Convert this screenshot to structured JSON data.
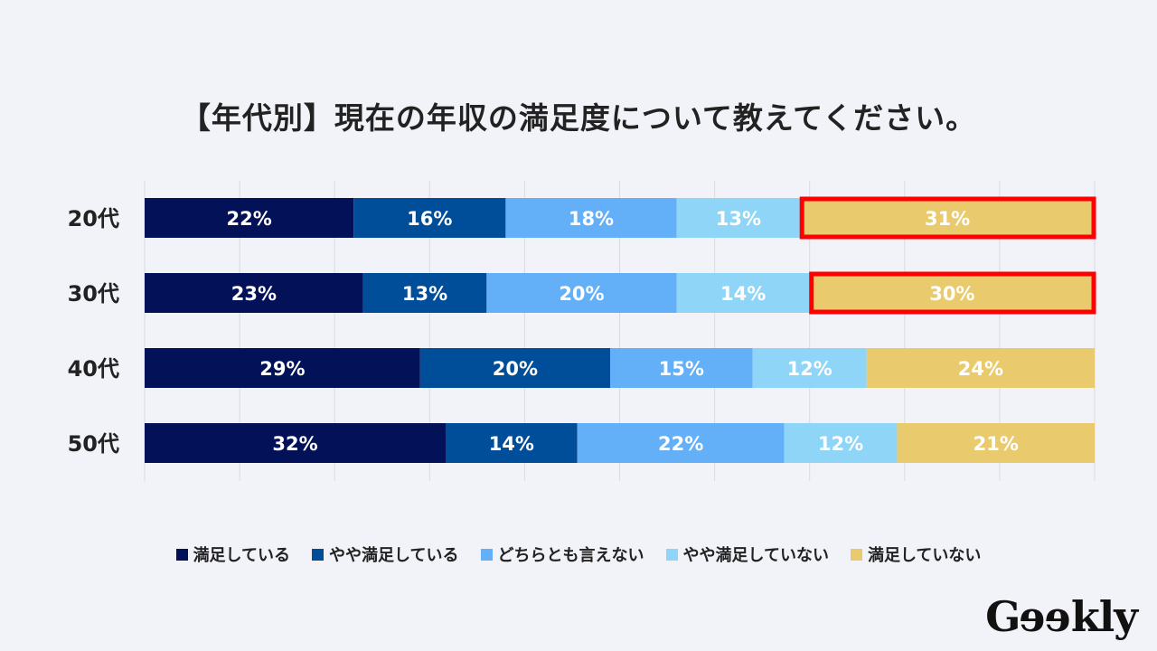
{
  "chart_data": {
    "type": "bar",
    "orientation": "horizontal-stacked-100",
    "title": "【年代別】現在の年収の満足度について教えてください。",
    "categories": [
      "20代",
      "30代",
      "40代",
      "50代"
    ],
    "series": [
      {
        "name": "満足している",
        "color": "#031158",
        "values": [
          22,
          23,
          29,
          32
        ]
      },
      {
        "name": "やや満足している",
        "color": "#004d9a",
        "values": [
          16,
          13,
          20,
          14
        ]
      },
      {
        "name": "どちらとも言えない",
        "color": "#63aff8",
        "values": [
          18,
          20,
          15,
          22
        ]
      },
      {
        "name": "やや満足していない",
        "color": "#8fd5f8",
        "values": [
          13,
          14,
          12,
          12
        ]
      },
      {
        "name": "満足していない",
        "color": "#e9cb6e",
        "values": [
          31,
          30,
          24,
          21
        ]
      }
    ],
    "value_suffix": "%",
    "xlim": [
      0,
      100
    ],
    "grid": true,
    "legend_position": "bottom",
    "highlights": [
      {
        "category": "20代",
        "series": "満足していない"
      },
      {
        "category": "30代",
        "series": "満足していない"
      }
    ],
    "highlight_color": "#ff0000"
  },
  "logo_text": "Geekly"
}
